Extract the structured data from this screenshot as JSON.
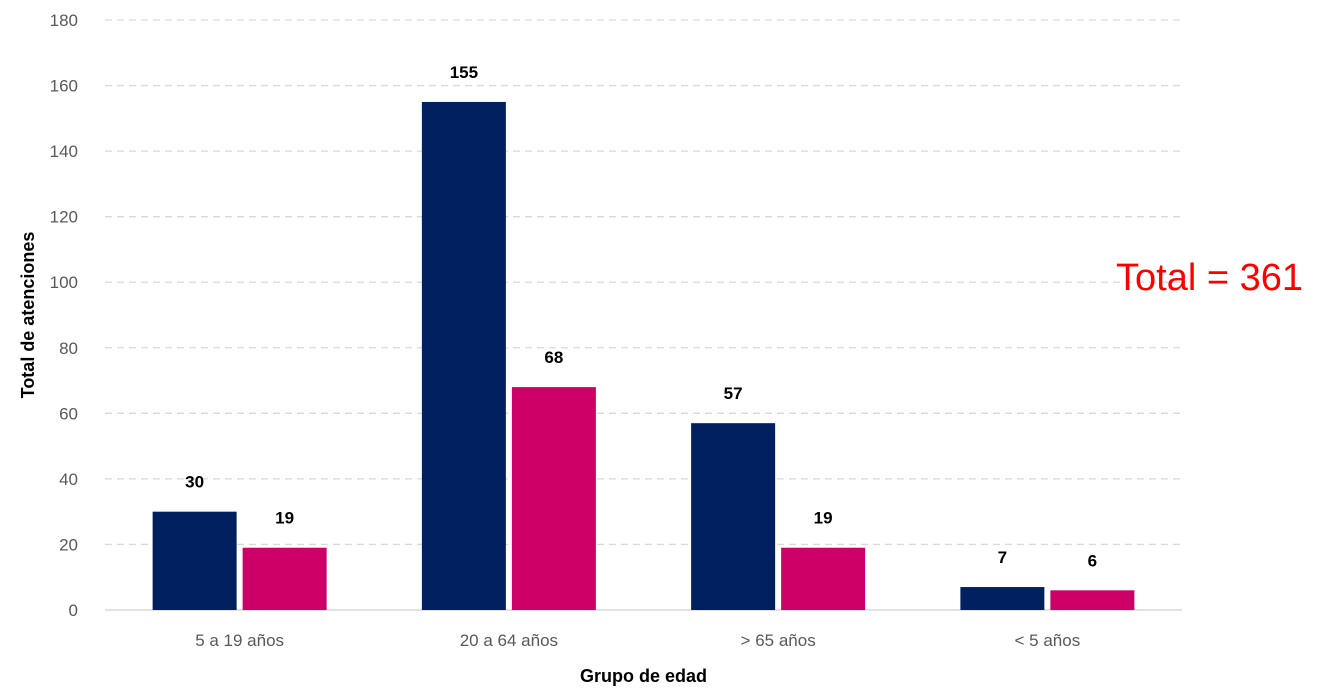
{
  "chart_data": {
    "type": "bar",
    "categories": [
      "5 a 19 años",
      "20 a 64 años",
      "> 65 años",
      "< 5 años"
    ],
    "series": [
      {
        "values": [
          30,
          155,
          57,
          7
        ],
        "color": "#002060"
      },
      {
        "values": [
          19,
          68,
          19,
          6
        ],
        "color": "#cc0066"
      }
    ],
    "title": "",
    "xlabel": "Grupo de edad",
    "ylabel": "Total de atenciones",
    "ylim": [
      0,
      180
    ],
    "yticks": [
      0,
      20,
      40,
      60,
      80,
      100,
      120,
      140,
      160,
      180
    ],
    "grid": true,
    "legend": "none",
    "annotation": "Total = 361"
  }
}
